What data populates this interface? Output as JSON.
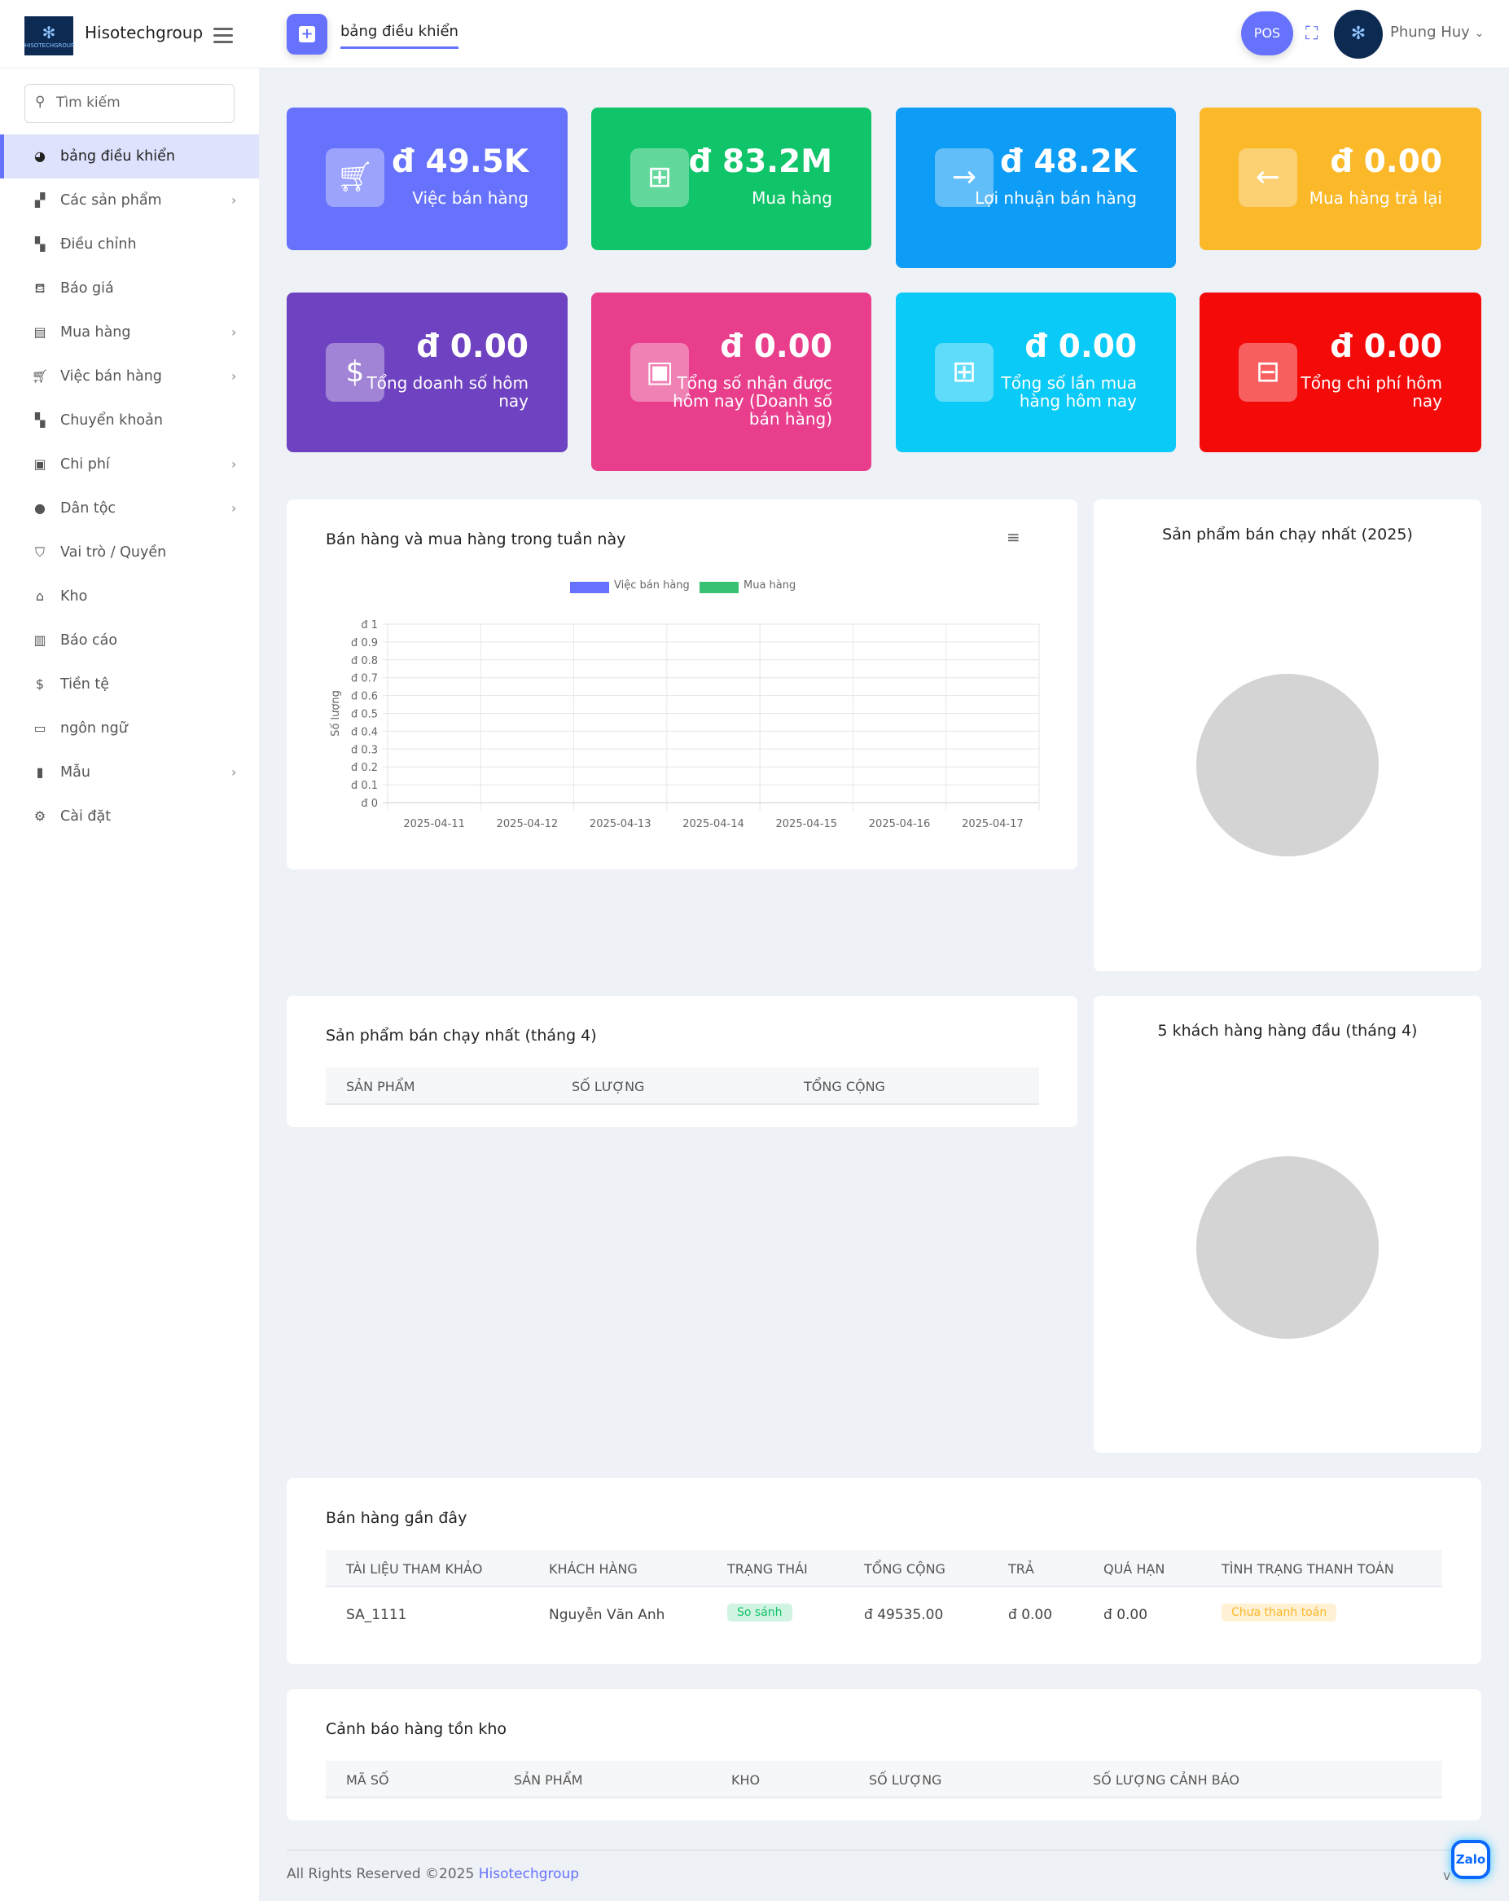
{
  "header": {
    "brand": "Hisotechgroup",
    "breadcrumb": "bảng điều khiển",
    "pos_label": "POS",
    "user_name": "Phung Huy"
  },
  "sidebar": {
    "search_placeholder": "Tìm kiếm",
    "items": [
      {
        "label": "bảng điều khiển",
        "icon": "pie-chart-icon",
        "active": true
      },
      {
        "label": "Các sản phẩm",
        "icon": "boxes-icon",
        "submenu": true
      },
      {
        "label": "Điều chỉnh",
        "icon": "map-icon"
      },
      {
        "label": "Báo giá",
        "icon": "basket-icon"
      },
      {
        "label": "Mua hàng",
        "icon": "receipt-icon",
        "submenu": true
      },
      {
        "label": "Việc bán hàng",
        "icon": "cart-icon",
        "submenu": true
      },
      {
        "label": "Chuyển khoản",
        "icon": "map-icon"
      },
      {
        "label": "Chi phí",
        "icon": "money-icon",
        "submenu": true
      },
      {
        "label": "Dân tộc",
        "icon": "user-icon",
        "submenu": true
      },
      {
        "label": "Vai trò / Quyền",
        "icon": "shield-icon"
      },
      {
        "label": "Kho",
        "icon": "home-icon"
      },
      {
        "label": "Báo cáo",
        "icon": "bar-chart-icon"
      },
      {
        "label": "Tiền tệ",
        "icon": "dollar-icon"
      },
      {
        "label": "ngôn ngữ",
        "icon": "language-icon"
      },
      {
        "label": "Mẫu",
        "icon": "file-icon",
        "submenu": true
      },
      {
        "label": "Cài đặt",
        "icon": "gear-icon"
      }
    ]
  },
  "cards": [
    {
      "value": "đ 49.5K",
      "label": "Việc bán hàng",
      "color": "#6672fc",
      "icon": "cart-icon"
    },
    {
      "value": "đ 83.2M",
      "label": "Mua hàng",
      "color": "#10c469",
      "icon": "cart-plus-icon"
    },
    {
      "value": "đ 48.2K",
      "label": "Lợi nhuận bán hàng",
      "color": "#0d9cf6",
      "icon": "arrow-right-icon"
    },
    {
      "value": "đ 0.00",
      "label": "Mua hàng trả lại",
      "color": "#fbb829",
      "icon": "arrow-left-icon"
    },
    {
      "value": "đ 0.00",
      "label": "Tổng doanh số hôm nay",
      "color": "#6f42c1",
      "icon": "dollar-icon"
    },
    {
      "value": "đ 0.00",
      "label": "Tổng số nhận được hôm nay (Doanh số bán hàng)",
      "color": "#e83e8c",
      "icon": "money-icon"
    },
    {
      "value": "đ 0.00",
      "label": "Tổng số lần mua hàng hôm nay",
      "color": "#0acaf7",
      "icon": "cart-plus-icon"
    },
    {
      "value": "đ 0.00",
      "label": "Tổng chi phí hôm nay",
      "color": "#f50a0a",
      "icon": "minus-icon"
    }
  ],
  "chart_data": {
    "type": "bar",
    "title": "Bán hàng và mua hàng trong tuần này",
    "ylabel": "Số lượng",
    "xlabel": "",
    "categories": [
      "2025-04-11",
      "2025-04-12",
      "2025-04-13",
      "2025-04-14",
      "2025-04-15",
      "2025-04-16",
      "2025-04-17"
    ],
    "series": [
      {
        "name": "Việc bán hàng",
        "color": "#6672fc",
        "values": [
          0,
          0,
          0,
          0,
          0,
          0,
          0
        ]
      },
      {
        "name": "Mua hàng",
        "color": "#38c172",
        "values": [
          0,
          0,
          0,
          0,
          0,
          0,
          0
        ]
      }
    ],
    "ylim": [
      0,
      1
    ],
    "yticks": [
      "đ 0",
      "đ 0.1",
      "đ 0.2",
      "đ 0.3",
      "đ 0.4",
      "đ 0.5",
      "đ 0.6",
      "đ 0.7",
      "đ 0.8",
      "đ 0.9",
      "đ 1"
    ],
    "grid": true,
    "legend": "top"
  },
  "best_sellers_year": {
    "title": "Sản phẩm bán chạy nhất (2025)"
  },
  "best_sellers_month": {
    "title": "Sản phẩm bán chạy nhất (tháng 4)",
    "columns": [
      "SẢN PHẨM",
      "SỐ LƯỢNG",
      "TỔNG CỘNG"
    ]
  },
  "top_customers": {
    "title": "5 khách hàng hàng đầu (tháng 4)"
  },
  "recent_sales": {
    "title": "Bán hàng gần đây",
    "columns": [
      "TÀI LIỆU THAM KHẢO",
      "KHÁCH HÀNG",
      "TRẠNG THÁI",
      "TỔNG CỘNG",
      "TRẢ",
      "QUÁ HẠN",
      "TÌNH TRẠNG THANH TOÁN"
    ],
    "rows": [
      {
        "ref": "SA_1111",
        "customer": "Nguyễn Văn Anh",
        "status": "So sánh",
        "total": "đ 49535.00",
        "paid": "đ 0.00",
        "due": "đ 0.00",
        "payment_status": "Chưa thanh toán"
      }
    ]
  },
  "stock_alert": {
    "title": "Cảnh báo hàng tồn kho",
    "columns": [
      "MÃ SỐ",
      "SẢN PHẨM",
      "KHO",
      "SỐ LƯỢNG",
      "SỐ LƯỢNG CẢNH BÁO"
    ]
  },
  "footer": {
    "text": "All Rights Reserved ©2025",
    "link": "Hisotechgroup",
    "version": "v"
  },
  "zalo": "Zalo"
}
